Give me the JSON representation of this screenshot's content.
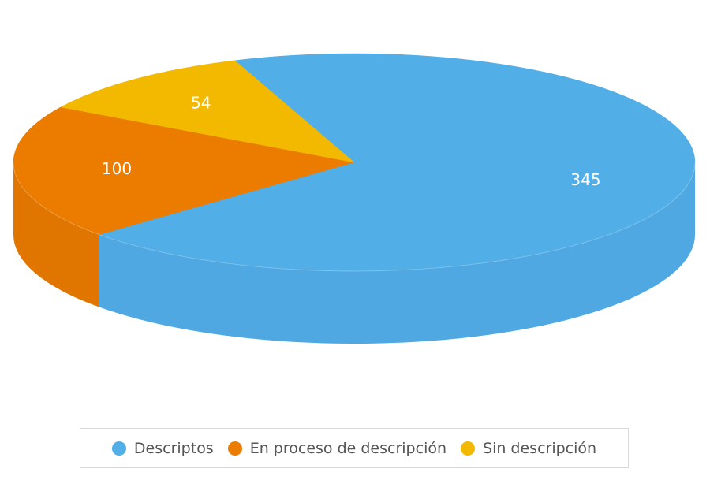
{
  "chart_data": {
    "type": "pie",
    "title": "",
    "categories": [
      "Descriptos",
      "En proceso de descripción",
      "Sin descripción"
    ],
    "values": [
      345,
      100,
      54
    ],
    "colors": [
      "#52AEE6",
      "#EB7C00",
      "#F2B900"
    ],
    "side_colors": [
      "#4FA8E2",
      "#E07600",
      "#E8AE00"
    ],
    "show_data_labels": true,
    "legend_position": "bottom",
    "style": "3d"
  },
  "legend": {
    "items": [
      {
        "label": "Descriptos",
        "color": "#52AEE6"
      },
      {
        "label": "En proceso de descripción",
        "color": "#EB7C00"
      },
      {
        "label": "Sin descripción",
        "color": "#F2B900"
      }
    ]
  }
}
